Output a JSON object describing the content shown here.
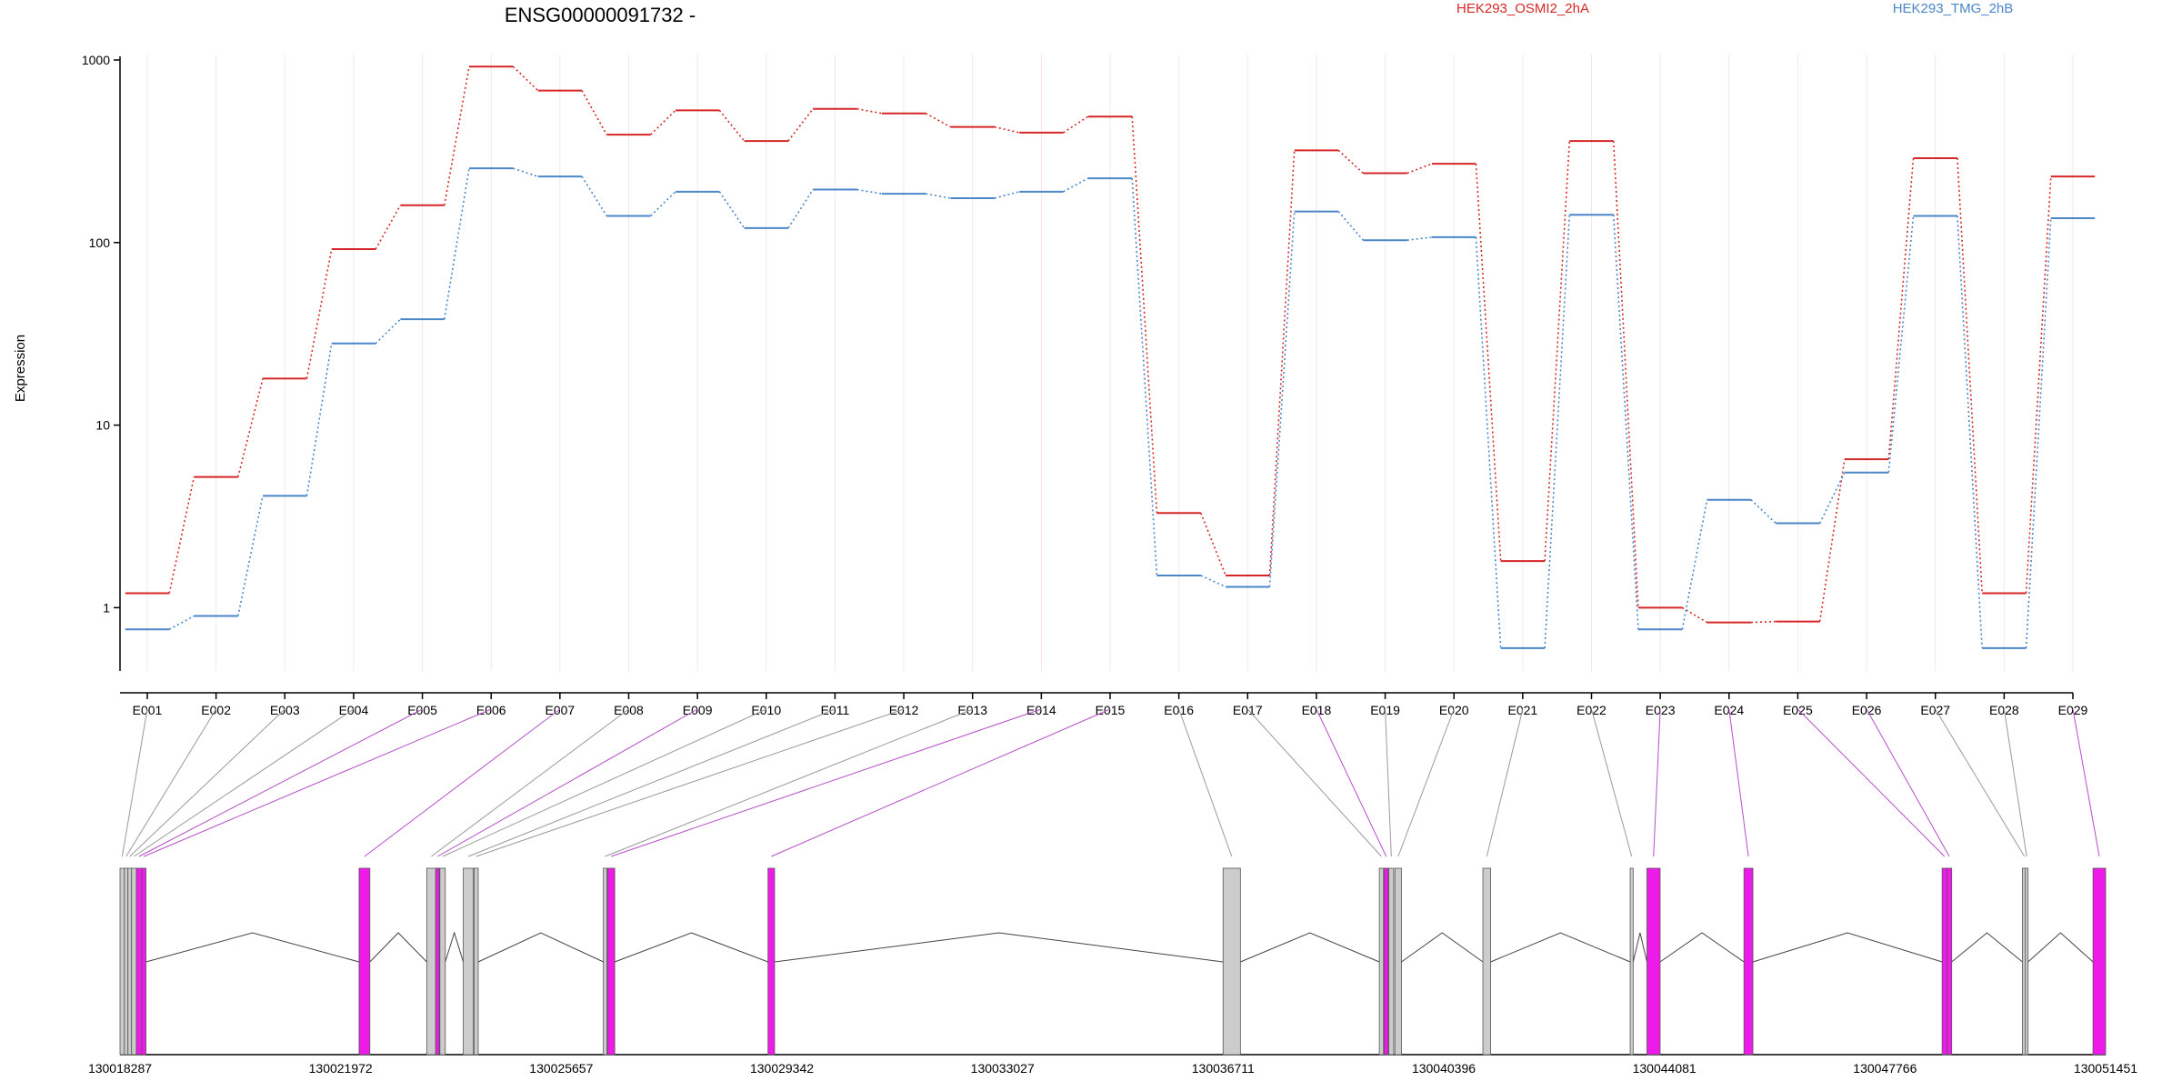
{
  "chart_data": {
    "type": "line",
    "title": "ENSG00000091732 -",
    "xlabel": "",
    "ylabel": "Expression",
    "yscale": "log",
    "ylim": [
      0.45,
      1000
    ],
    "yticks": [
      1,
      10,
      100,
      1000
    ],
    "yticklabels": [
      "1",
      "10",
      "100",
      "1000"
    ],
    "legend_position": "top",
    "grid": "vertical",
    "categories": [
      "E001",
      "E002",
      "E003",
      "E004",
      "E005",
      "E006",
      "E007",
      "E008",
      "E009",
      "E010",
      "E011",
      "E012",
      "E013",
      "E014",
      "E015",
      "E016",
      "E017",
      "E018",
      "E019",
      "E020",
      "E021",
      "E022",
      "E023",
      "E024",
      "E025",
      "E026",
      "E027",
      "E028",
      "E029"
    ],
    "series": [
      {
        "name": "HEK293_OSMI2_2hA",
        "color": "#d62728",
        "values": [
          1.2,
          5.2,
          18,
          92,
          160,
          920,
          680,
          390,
          530,
          360,
          540,
          510,
          430,
          400,
          490,
          3.3,
          1.5,
          320,
          240,
          270,
          1.8,
          360,
          1.0,
          0.83,
          0.84,
          6.5,
          290,
          1.2,
          230
        ]
      },
      {
        "name": "HEK293_TMG_2hB",
        "color": "#4a86c8",
        "values": [
          0.76,
          0.9,
          4.1,
          28,
          38,
          255,
          230,
          140,
          190,
          120,
          195,
          185,
          175,
          190,
          225,
          1.5,
          1.3,
          148,
          103,
          107,
          0.6,
          142,
          0.76,
          3.9,
          2.9,
          5.5,
          140,
          0.6,
          136
        ]
      }
    ],
    "gene_model": {
      "coordinates": [
        "130018287",
        "130021972",
        "130025657",
        "130029342",
        "130033027",
        "130036711",
        "130040396",
        "130044081",
        "130047766",
        "130051451"
      ],
      "coord_range": [
        130018287,
        130051451
      ],
      "exon_highlight_color": "#ee1ae8",
      "exon_plain_color": "#cccccc",
      "exons": [
        {
          "label": "E001",
          "start": 130018287,
          "end": 130018360,
          "highlight": false
        },
        {
          "label": "E002",
          "start": 130018360,
          "end": 130018420,
          "highlight": false
        },
        {
          "label": "E003",
          "start": 130018420,
          "end": 130018480,
          "highlight": false
        },
        {
          "label": "E004",
          "start": 130018480,
          "end": 130018560,
          "highlight": false
        },
        {
          "label": "E005",
          "start": 130018560,
          "end": 130018650,
          "highlight": true
        },
        {
          "label": "E006",
          "start": 130018650,
          "end": 130018720,
          "highlight": true
        },
        {
          "label": "E007",
          "start": 130022280,
          "end": 130022460,
          "highlight": true
        },
        {
          "label": "E008",
          "start": 130023410,
          "end": 130023560,
          "highlight": false
        },
        {
          "label": "E009",
          "start": 130023560,
          "end": 130023620,
          "highlight": true
        },
        {
          "label": "E010",
          "start": 130023630,
          "end": 130023720,
          "highlight": false
        },
        {
          "label": "E011",
          "start": 130024020,
          "end": 130024190,
          "highlight": false
        },
        {
          "label": "E012",
          "start": 130024200,
          "end": 130024270,
          "highlight": false
        },
        {
          "label": "E013",
          "start": 130026360,
          "end": 130026420,
          "highlight": false
        },
        {
          "label": "E014",
          "start": 130026430,
          "end": 130026550,
          "highlight": true
        },
        {
          "label": "E015",
          "start": 130029110,
          "end": 130029220,
          "highlight": true
        },
        {
          "label": "E016",
          "start": 130036710,
          "end": 130037000,
          "highlight": false
        },
        {
          "label": "E017",
          "start": 130039320,
          "end": 130039390,
          "highlight": false
        },
        {
          "label": "E018",
          "start": 130039400,
          "end": 130039470,
          "highlight": true
        },
        {
          "label": "E019",
          "start": 130039480,
          "end": 130039560,
          "highlight": false
        },
        {
          "label": "E020",
          "start": 130039580,
          "end": 130039690,
          "highlight": false
        },
        {
          "label": "E021",
          "start": 130041050,
          "end": 130041180,
          "highlight": false
        },
        {
          "label": "E022",
          "start": 130043510,
          "end": 130043560,
          "highlight": false
        },
        {
          "label": "E023",
          "start": 130043790,
          "end": 130044010,
          "highlight": true
        },
        {
          "label": "E024",
          "start": 130045410,
          "end": 130045560,
          "highlight": true
        },
        {
          "label": "E025",
          "start": 130048720,
          "end": 130048800,
          "highlight": true
        },
        {
          "label": "E026",
          "start": 130048800,
          "end": 130048880,
          "highlight": true
        },
        {
          "label": "E027",
          "start": 130050060,
          "end": 130050130,
          "highlight": false
        },
        {
          "label": "E028",
          "start": 130050110,
          "end": 130050130,
          "highlight": false
        },
        {
          "label": "E029",
          "start": 130051240,
          "end": 130051451,
          "highlight": true
        }
      ]
    }
  }
}
